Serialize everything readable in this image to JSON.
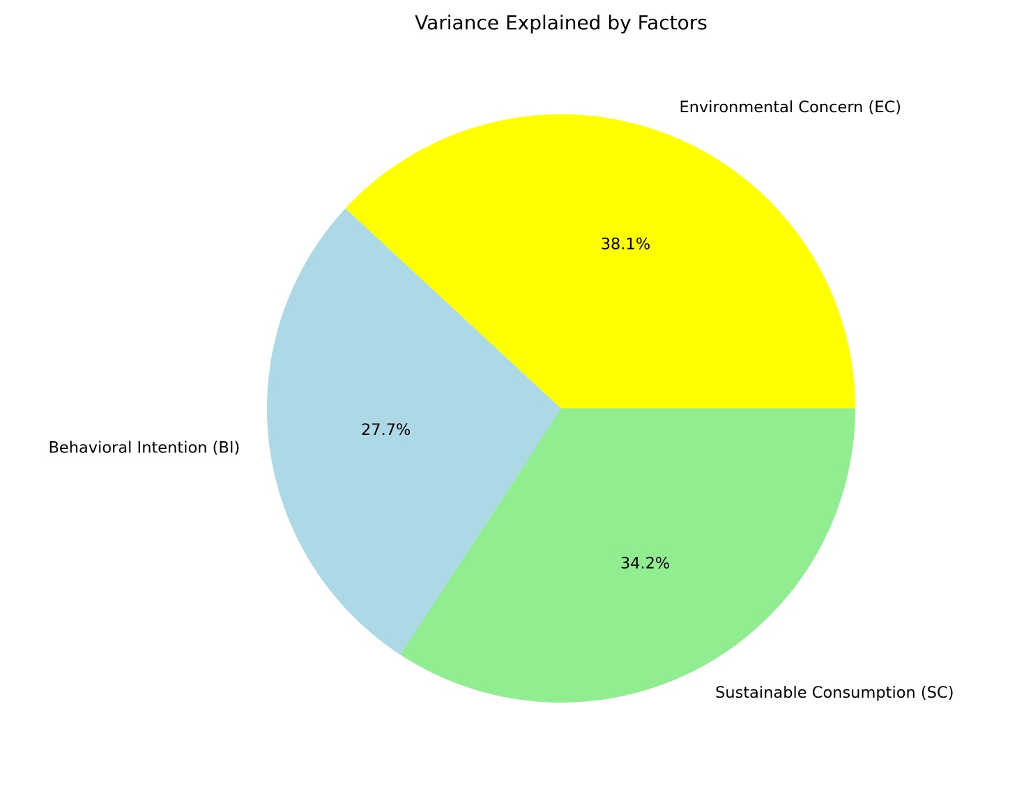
{
  "chart_data": {
    "type": "pie",
    "title": "Variance Explained by Factors",
    "start_angle_deg": 0,
    "direction": "counterclockwise",
    "slices": [
      {
        "label": "Environmental Concern (EC)",
        "value": 38.1,
        "pct_label": "38.1%",
        "color": "#ffff00"
      },
      {
        "label": "Behavioral Intention (BI)",
        "value": 27.7,
        "pct_label": "27.7%",
        "color": "#add8e6"
      },
      {
        "label": "Sustainable Consumption (SC)",
        "value": 34.2,
        "pct_label": "34.2%",
        "color": "#90ee90"
      }
    ]
  }
}
